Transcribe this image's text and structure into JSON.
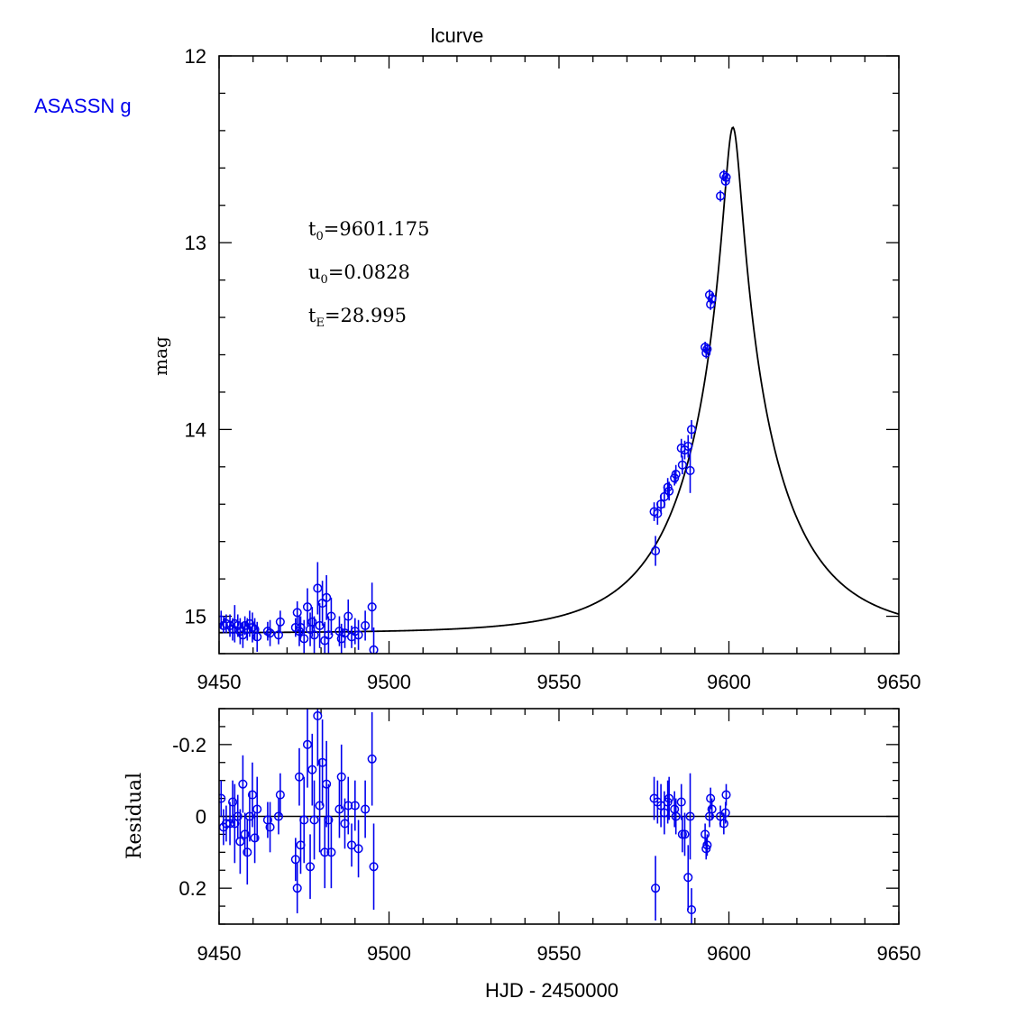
{
  "chart_data": [
    {
      "type": "scatter",
      "panel": "light curve",
      "title": "lcurve",
      "dataset_label": "ASASSN g",
      "xlabel": "",
      "ylabel": "mag",
      "xlim": [
        9450,
        9650
      ],
      "ylim": [
        15.2,
        12.0
      ],
      "y_inverted": true,
      "x_ticks": [
        9450,
        9500,
        9550,
        9600,
        9650
      ],
      "y_ticks": [
        12,
        13,
        14,
        15
      ],
      "annotations": {
        "t0": {
          "sym": "t",
          "sub": "0",
          "value": "=9601.175"
        },
        "u0": {
          "sym": "u",
          "sub": "0",
          "value": "=0.0828"
        },
        "tE": {
          "sym": "t",
          "sub": "E",
          "value": "=28.995"
        }
      },
      "model": {
        "t0": 9601.175,
        "u0": 0.0828,
        "tE": 28.995,
        "baseline_mag": 15.09
      },
      "series": [
        {
          "name": "ASASSN g",
          "color": "#0000ee",
          "points": [
            [
              9450.6,
              15.02,
              0.05
            ],
            [
              9451.3,
              15.05,
              0.04
            ],
            [
              9452.1,
              15.04,
              0.05
            ],
            [
              9453.2,
              15.05,
              0.06
            ],
            [
              9454.0,
              15.07,
              0.06
            ],
            [
              9454.6,
              15.04,
              0.1
            ],
            [
              9455.5,
              15.05,
              0.06
            ],
            [
              9456.2,
              15.08,
              0.07
            ],
            [
              9457.0,
              15.1,
              0.07
            ],
            [
              9457.6,
              15.05,
              0.05
            ],
            [
              9458.3,
              15.07,
              0.06
            ],
            [
              9459.0,
              15.04,
              0.07
            ],
            [
              9459.8,
              15.06,
              0.08
            ],
            [
              9460.5,
              15.07,
              0.06
            ],
            [
              9461.2,
              15.11,
              0.08
            ],
            [
              9464.3,
              15.08,
              0.05
            ],
            [
              9465.0,
              15.09,
              0.07
            ],
            [
              9467.5,
              15.1,
              0.05
            ],
            [
              9468.0,
              15.03,
              0.06
            ],
            [
              9472.5,
              15.06,
              0.05
            ],
            [
              9473.0,
              14.98,
              0.06
            ],
            [
              9473.6,
              15.08,
              0.08
            ],
            [
              9474.0,
              15.06,
              0.06
            ],
            [
              9475.0,
              15.12,
              0.1
            ],
            [
              9476.0,
              14.95,
              0.1
            ],
            [
              9476.8,
              15.07,
              0.09
            ],
            [
              9477.4,
              15.03,
              0.08
            ],
            [
              9478.0,
              15.1,
              0.1
            ],
            [
              9479.0,
              14.85,
              0.14
            ],
            [
              9479.6,
              15.05,
              0.12
            ],
            [
              9480.4,
              14.93,
              0.12
            ],
            [
              9481.1,
              15.13,
              0.1
            ],
            [
              9481.6,
              14.9,
              0.12
            ],
            [
              9482.2,
              15.1,
              0.1
            ],
            [
              9483.0,
              15.0,
              0.1
            ],
            [
              9485.4,
              15.08,
              0.08
            ],
            [
              9486.0,
              15.12,
              0.08
            ],
            [
              9487.0,
              15.09,
              0.08
            ],
            [
              9488.0,
              15.0,
              0.09
            ],
            [
              9489.0,
              15.11,
              0.06
            ],
            [
              9490.0,
              15.08,
              0.07
            ],
            [
              9491.0,
              15.1,
              0.08
            ],
            [
              9493.0,
              15.05,
              0.08
            ],
            [
              9495.0,
              14.95,
              0.13
            ],
            [
              9495.5,
              15.18,
              0.12
            ],
            [
              9578.0,
              14.44,
              0.05
            ],
            [
              9578.4,
              14.65,
              0.08
            ],
            [
              9579.0,
              14.45,
              0.06
            ],
            [
              9580.0,
              14.4,
              0.05
            ],
            [
              9581.0,
              14.36,
              0.06
            ],
            [
              9582.0,
              14.31,
              0.05
            ],
            [
              9582.4,
              14.33,
              0.05
            ],
            [
              9584.0,
              14.26,
              0.04
            ],
            [
              9584.4,
              14.24,
              0.05
            ],
            [
              9586.0,
              14.1,
              0.05
            ],
            [
              9586.3,
              14.19,
              0.05
            ],
            [
              9587.0,
              14.11,
              0.05
            ],
            [
              9588.0,
              14.09,
              0.06
            ],
            [
              9588.6,
              14.22,
              0.12
            ],
            [
              9589.0,
              14.0,
              0.05
            ],
            [
              9593.0,
              13.56,
              0.03
            ],
            [
              9593.3,
              13.59,
              0.03
            ],
            [
              9593.6,
              13.57,
              0.03
            ],
            [
              9594.3,
              13.28,
              0.03
            ],
            [
              9594.6,
              13.33,
              0.03
            ],
            [
              9595.0,
              13.3,
              0.03
            ],
            [
              9597.5,
              12.75,
              0.03
            ],
            [
              9598.5,
              12.64,
              0.03
            ],
            [
              9599.0,
              12.67,
              0.03
            ],
            [
              9599.2,
              12.65,
              0.03
            ]
          ]
        }
      ]
    },
    {
      "type": "scatter",
      "panel": "residuals",
      "xlabel": "HJD - 2450000",
      "ylabel": "Residual",
      "xlim": [
        9450,
        9650
      ],
      "ylim": [
        -0.3,
        0.3
      ],
      "y_inverted": true,
      "x_ticks": [
        9450,
        9500,
        9550,
        9600,
        9650
      ],
      "y_ticks": [
        -0.2,
        0,
        0.2
      ],
      "y_tick_labels": [
        "-0.2",
        "0",
        "0.2"
      ],
      "series": [
        {
          "name": "ASASSN g",
          "color": "#0000ee",
          "points": [
            [
              9450.6,
              -0.05,
              0.05
            ],
            [
              9451.3,
              0.03,
              0.05
            ],
            [
              9452.1,
              0.02,
              0.05
            ],
            [
              9453.2,
              0.02,
              0.06
            ],
            [
              9454.0,
              -0.04,
              0.06
            ],
            [
              9454.6,
              0.02,
              0.11
            ],
            [
              9455.5,
              0.0,
              0.06
            ],
            [
              9456.2,
              0.07,
              0.09
            ],
            [
              9457.0,
              -0.09,
              0.08
            ],
            [
              9457.6,
              0.05,
              0.06
            ],
            [
              9458.3,
              0.1,
              0.09
            ],
            [
              9459.0,
              0.0,
              0.07
            ],
            [
              9459.8,
              -0.06,
              0.09
            ],
            [
              9460.5,
              0.06,
              0.07
            ],
            [
              9461.2,
              -0.02,
              0.09
            ],
            [
              9464.3,
              0.01,
              0.05
            ],
            [
              9465.0,
              0.03,
              0.07
            ],
            [
              9467.5,
              0.0,
              0.05
            ],
            [
              9468.0,
              -0.06,
              0.06
            ],
            [
              9472.5,
              0.12,
              0.06
            ],
            [
              9473.0,
              0.2,
              0.07
            ],
            [
              9473.6,
              -0.11,
              0.08
            ],
            [
              9474.0,
              0.08,
              0.08
            ],
            [
              9475.0,
              0.01,
              0.12
            ],
            [
              9476.0,
              -0.2,
              0.12
            ],
            [
              9476.8,
              0.14,
              0.09
            ],
            [
              9477.4,
              -0.13,
              0.1
            ],
            [
              9478.0,
              0.01,
              0.11
            ],
            [
              9479.0,
              -0.28,
              0.14
            ],
            [
              9479.6,
              -0.03,
              0.13
            ],
            [
              9480.4,
              -0.15,
              0.12
            ],
            [
              9481.1,
              0.1,
              0.1
            ],
            [
              9481.6,
              -0.09,
              0.12
            ],
            [
              9482.2,
              0.01,
              0.1
            ],
            [
              9483.0,
              0.1,
              0.1
            ],
            [
              9485.4,
              -0.02,
              0.08
            ],
            [
              9486.0,
              -0.11,
              0.09
            ],
            [
              9487.0,
              0.02,
              0.07
            ],
            [
              9488.0,
              -0.03,
              0.08
            ],
            [
              9489.0,
              0.08,
              0.06
            ],
            [
              9490.0,
              -0.03,
              0.07
            ],
            [
              9491.0,
              0.09,
              0.08
            ],
            [
              9493.0,
              -0.02,
              0.08
            ],
            [
              9495.0,
              -0.16,
              0.13
            ],
            [
              9495.5,
              0.14,
              0.12
            ],
            [
              9578.0,
              -0.05,
              0.06
            ],
            [
              9578.4,
              0.2,
              0.09
            ],
            [
              9579.0,
              -0.04,
              0.06
            ],
            [
              9580.0,
              -0.03,
              0.06
            ],
            [
              9581.0,
              -0.01,
              0.06
            ],
            [
              9582.0,
              -0.04,
              0.06
            ],
            [
              9582.4,
              -0.05,
              0.06
            ],
            [
              9584.0,
              -0.02,
              0.05
            ],
            [
              9584.4,
              0.0,
              0.05
            ],
            [
              9586.0,
              -0.04,
              0.05
            ],
            [
              9586.3,
              0.05,
              0.05
            ],
            [
              9587.0,
              0.05,
              0.06
            ],
            [
              9588.0,
              0.17,
              0.09
            ],
            [
              9588.6,
              0.0,
              0.12
            ],
            [
              9589.0,
              0.26,
              0.06
            ],
            [
              9593.0,
              0.05,
              0.03
            ],
            [
              9593.3,
              0.09,
              0.03
            ],
            [
              9593.6,
              0.08,
              0.03
            ],
            [
              9594.3,
              0.0,
              0.03
            ],
            [
              9594.6,
              -0.05,
              0.03
            ],
            [
              9595.0,
              -0.02,
              0.03
            ],
            [
              9597.5,
              0.0,
              0.03
            ],
            [
              9598.5,
              0.02,
              0.03
            ],
            [
              9599.0,
              -0.01,
              0.03
            ],
            [
              9599.2,
              -0.06,
              0.03
            ]
          ]
        }
      ]
    }
  ]
}
